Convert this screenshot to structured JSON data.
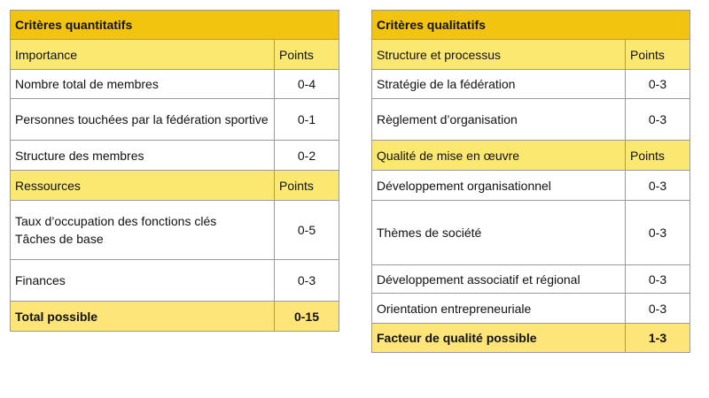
{
  "left": {
    "title": "Critères quantitatifs",
    "rows": [
      [
        "Importance",
        "Points"
      ],
      [
        "Nombre total de membres",
        "0-4"
      ],
      [
        "Personnes touchées par la fédération sportive",
        "0-1"
      ],
      [
        "Structure des membres",
        "0-2"
      ],
      [
        "Ressources",
        "Points"
      ],
      [
        "Taux d’occupation des fonctions clés\nTâches de base",
        "0-5"
      ],
      [
        "Finances",
        "0-3"
      ],
      [
        "Total possible",
        "0-15"
      ]
    ]
  },
  "right": {
    "title": "Critères qualitatifs",
    "rows": [
      [
        "Structure et processus",
        "Points"
      ],
      [
        "Stratégie de la fédération",
        "0-3"
      ],
      [
        "Règlement d’organisation",
        "0-3"
      ],
      [
        "Qualité de mise en œuvre",
        "Points"
      ],
      [
        "Développement organisationnel",
        "0-3"
      ],
      [
        "Thèmes de société",
        "0-3"
      ],
      [
        "Développement associatif et régional",
        "0-3"
      ],
      [
        "Orientation entrepreneuriale",
        "0-3"
      ],
      [
        "Facteur de qualité possible",
        "1-3"
      ]
    ]
  }
}
